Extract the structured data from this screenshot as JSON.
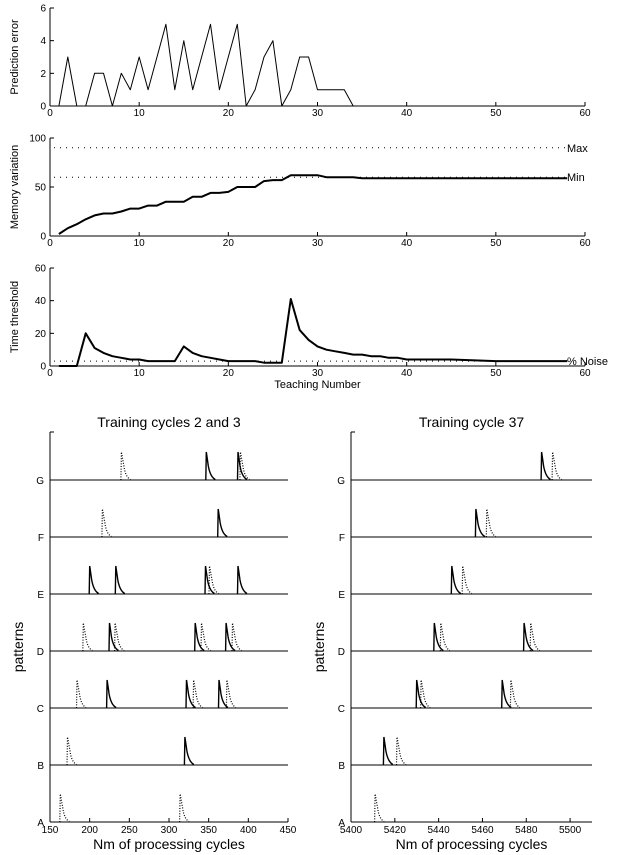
{
  "chart_data": [
    {
      "id": "prediction-error",
      "type": "line",
      "xlabel": "",
      "ylabel": "Prediction error",
      "xlim": [
        0,
        60
      ],
      "ylim": [
        0,
        6
      ],
      "xticks": [
        "0",
        "10",
        "20",
        "30",
        "40",
        "50",
        "60"
      ],
      "yticks": [
        "0",
        "2",
        "4",
        "6"
      ],
      "series": [
        {
          "style": "solid",
          "x": [
            1,
            2,
            3,
            4,
            5,
            6,
            7,
            8,
            9,
            10,
            11,
            12,
            13,
            14,
            15,
            16,
            17,
            18,
            19,
            20,
            21,
            22,
            23,
            24,
            25,
            26,
            27,
            28,
            29,
            30,
            31,
            32,
            33,
            34,
            35,
            57
          ],
          "y": [
            0,
            3,
            0,
            0,
            2,
            2,
            0,
            2,
            1,
            3,
            1,
            3,
            5,
            1,
            4,
            1,
            3,
            5,
            1,
            3,
            5,
            0,
            1,
            3,
            4,
            0,
            1,
            3,
            3,
            1,
            1,
            1,
            1,
            0,
            0,
            0
          ]
        }
      ]
    },
    {
      "id": "memory-variation",
      "type": "line",
      "xlabel": "",
      "ylabel": "Memory variation",
      "xlim": [
        0,
        60
      ],
      "ylim": [
        0,
        100
      ],
      "xticks": [
        "0",
        "10",
        "20",
        "30",
        "40",
        "50",
        "60"
      ],
      "yticks": [
        "0",
        "50",
        "100"
      ],
      "reference_lines": [
        {
          "label": "Max",
          "y": 90,
          "style": "dotted"
        },
        {
          "label": "Min",
          "y": 60,
          "style": "dotted"
        }
      ],
      "series": [
        {
          "style": "solid-bold",
          "x": [
            1,
            2,
            3,
            4,
            5,
            6,
            7,
            8,
            9,
            10,
            11,
            12,
            13,
            14,
            15,
            16,
            17,
            18,
            19,
            20,
            21,
            22,
            23,
            24,
            25,
            26,
            27,
            28,
            29,
            30,
            31,
            32,
            33,
            34,
            35,
            40,
            45,
            50,
            55,
            58
          ],
          "y": [
            2,
            8,
            12,
            17,
            21,
            23,
            23,
            25,
            28,
            28,
            31,
            31,
            35,
            35,
            35,
            40,
            40,
            44,
            44,
            45,
            50,
            50,
            50,
            56,
            57,
            57,
            62,
            62,
            62,
            62,
            60,
            60,
            60,
            60,
            59,
            59,
            59,
            59,
            59,
            59
          ]
        }
      ]
    },
    {
      "id": "time-threshold",
      "type": "line",
      "xlabel": "Teaching Number",
      "ylabel": "Time threshold",
      "xlim": [
        0,
        60
      ],
      "ylim": [
        0,
        60
      ],
      "xticks": [
        "0",
        "10",
        "20",
        "30",
        "40",
        "50",
        "60"
      ],
      "yticks": [
        "0",
        "20",
        "40",
        "60"
      ],
      "reference_lines": [
        {
          "label": "% Noise",
          "y": 3,
          "style": "dotted"
        }
      ],
      "series": [
        {
          "style": "solid-bold",
          "x": [
            1,
            2,
            3,
            4,
            5,
            6,
            7,
            8,
            9,
            10,
            11,
            12,
            13,
            14,
            15,
            16,
            17,
            18,
            19,
            20,
            21,
            22,
            23,
            24,
            25,
            26,
            27,
            28,
            29,
            30,
            31,
            32,
            33,
            34,
            35,
            36,
            37,
            38,
            39,
            40,
            45,
            50,
            55,
            58
          ],
          "y": [
            0,
            0,
            0,
            20,
            11,
            8,
            6,
            5,
            4,
            4,
            3,
            3,
            3,
            3,
            12,
            8,
            6,
            5,
            4,
            3,
            3,
            3,
            3,
            2,
            2,
            2,
            41,
            22,
            16,
            12,
            10,
            9,
            8,
            7,
            7,
            6,
            6,
            5,
            5,
            4,
            4,
            3,
            3,
            3
          ]
        }
      ]
    },
    {
      "id": "training-2-3",
      "type": "spike-raster",
      "title": "Training cycles 2 and 3",
      "xlabel": "Nm of processing cycles",
      "ylabel": "patterns",
      "xlim": [
        150,
        450
      ],
      "xticks": [
        "150",
        "200",
        "250",
        "300",
        "350",
        "400",
        "450"
      ],
      "rows": [
        "A",
        "B",
        "C",
        "D",
        "E",
        "F",
        "G"
      ],
      "solid_spikes": {
        "A": [],
        "B": [
          320
        ],
        "C": [
          222,
          322,
          363
        ],
        "D": [
          225,
          333,
          372
        ],
        "E": [
          200,
          233,
          346,
          387
        ],
        "F": [
          362
        ],
        "G": [
          347,
          387
        ]
      },
      "dotted_spikes": {
        "A": [
          163,
          314
        ],
        "B": [
          172
        ],
        "C": [
          184,
          331,
          373
        ],
        "D": [
          192,
          232,
          341,
          380
        ],
        "E": [
          351
        ],
        "F": [
          216
        ],
        "G": [
          240,
          390
        ]
      }
    },
    {
      "id": "training-37",
      "type": "spike-raster",
      "title": "Training cycle 37",
      "xlabel": "Nm of processing cycles",
      "ylabel": "patterns",
      "xlim": [
        5400,
        5510
      ],
      "xticks": [
        "5400",
        "5420",
        "5440",
        "5460",
        "5480",
        "5500"
      ],
      "rows": [
        "A",
        "B",
        "C",
        "D",
        "E",
        "F",
        "G"
      ],
      "solid_spikes": {
        "A": [],
        "B": [
          5415
        ],
        "C": [
          5430,
          5469
        ],
        "D": [
          5438,
          5479
        ],
        "E": [
          5446
        ],
        "F": [
          5457
        ],
        "G": [
          5487
        ]
      },
      "dotted_spikes": {
        "A": [
          5411
        ],
        "B": [
          5421
        ],
        "C": [
          5432,
          5473
        ],
        "D": [
          5441,
          5482
        ],
        "E": [
          5451
        ],
        "F": [
          5462
        ],
        "G": [
          5492
        ]
      }
    }
  ]
}
